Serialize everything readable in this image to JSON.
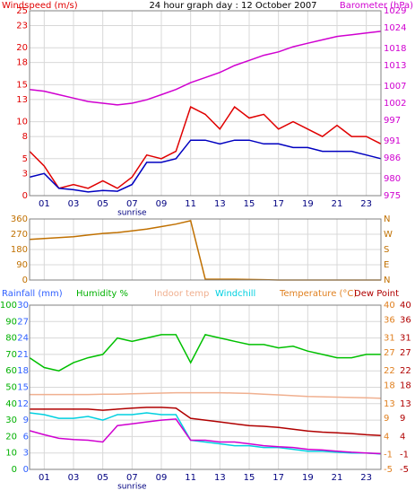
{
  "chart_data": [
    {
      "type": "line",
      "title": "24 hour graph day : 12 October 2007",
      "sunrise_label": "sunrise",
      "x": [
        0,
        1,
        2,
        3,
        4,
        5,
        6,
        7,
        8,
        9,
        10,
        11,
        12,
        13,
        14,
        15,
        16,
        17,
        18,
        19,
        20,
        21,
        22,
        23,
        24
      ],
      "xlim": [
        0,
        24
      ],
      "xticks": [
        {
          "value": 1,
          "label": "01"
        },
        {
          "value": 3,
          "label": "03"
        },
        {
          "value": 5,
          "label": "05"
        },
        {
          "value": 7,
          "label": "07"
        },
        {
          "value": 9,
          "label": "09"
        },
        {
          "value": 11,
          "label": "11"
        },
        {
          "value": 13,
          "label": "13"
        },
        {
          "value": 15,
          "label": "15"
        },
        {
          "value": 17,
          "label": "17"
        },
        {
          "value": 19,
          "label": "19"
        },
        {
          "value": 21,
          "label": "21"
        },
        {
          "value": 23,
          "label": "23"
        }
      ],
      "axes": [
        {
          "label": "Windspeed (m/s)",
          "side": "left",
          "color": "#e00000",
          "lim": [
            0,
            25
          ],
          "ticks": [
            0,
            3,
            5,
            8,
            10,
            13,
            15,
            18,
            20,
            23,
            25
          ]
        },
        {
          "label": "Barometer (hPa)",
          "side": "right",
          "color": "#d000d0",
          "lim": [
            975,
            1029
          ],
          "ticks": [
            975,
            980,
            986,
            991,
            997,
            1002,
            1007,
            1013,
            1018,
            1024,
            1029
          ]
        }
      ],
      "series": [
        {
          "color": "#e00000",
          "axis": 0,
          "values": [
            6,
            4,
            1,
            1.5,
            1,
            2,
            1,
            2.5,
            5.5,
            5,
            6,
            12,
            11,
            9,
            12,
            10.5,
            11,
            9,
            10,
            9,
            8,
            9.5,
            8,
            8,
            7
          ]
        },
        {
          "color": "#0000c0",
          "axis": 0,
          "values": [
            2.5,
            3,
            1,
            0.8,
            0.5,
            0.7,
            0.6,
            1.5,
            4.5,
            4.5,
            5,
            7.5,
            7.5,
            7,
            7.5,
            7.5,
            7,
            7,
            6.5,
            6.5,
            6,
            6,
            6,
            5.5,
            5
          ]
        },
        {
          "color": "#d000d0",
          "axis": 1,
          "values": [
            1006,
            1005.5,
            1004.5,
            1003.5,
            1002.5,
            1002,
            1001.5,
            1002,
            1003,
            1004.5,
            1006,
            1008,
            1009.5,
            1011,
            1013,
            1014.5,
            1016,
            1017,
            1018.5,
            1019.5,
            1020.5,
            1021.5,
            1022,
            1022.5,
            1023
          ]
        }
      ]
    },
    {
      "type": "line",
      "x": [
        0,
        1,
        2,
        3,
        4,
        5,
        6,
        7,
        8,
        9,
        10,
        11,
        12,
        13,
        14,
        15,
        16,
        17,
        18,
        19,
        20,
        21,
        22,
        23,
        24
      ],
      "xlim": [
        0,
        24
      ],
      "xticks": [
        {
          "value": 1,
          "label": "01"
        },
        {
          "value": 3,
          "label": "03"
        },
        {
          "value": 5,
          "label": "05"
        },
        {
          "value": 7,
          "label": "07"
        },
        {
          "value": 9,
          "label": "09"
        },
        {
          "value": 11,
          "label": "11"
        },
        {
          "value": 13,
          "label": "13"
        },
        {
          "value": 15,
          "label": "15"
        },
        {
          "value": 17,
          "label": "17"
        },
        {
          "value": 19,
          "label": "19"
        },
        {
          "value": 21,
          "label": "21"
        },
        {
          "value": 23,
          "label": "23"
        }
      ],
      "axes": [
        {
          "side": "left",
          "color": "#c07000",
          "lim": [
            0,
            360
          ],
          "ticks": [
            0,
            90,
            180,
            270,
            360
          ]
        },
        {
          "side": "right",
          "color": "#c07000",
          "lim": [
            0,
            360
          ],
          "ticks": [
            {
              "value": 0,
              "label": "N"
            },
            {
              "value": 90,
              "label": "E"
            },
            {
              "value": 180,
              "label": "S"
            },
            {
              "value": 270,
              "label": "W"
            },
            {
              "value": 360,
              "label": "N"
            }
          ]
        }
      ],
      "series": [
        {
          "color": "#c07000",
          "axis": 0,
          "values": [
            240,
            245,
            250,
            255,
            265,
            275,
            280,
            290,
            300,
            315,
            330,
            350,
            5,
            5,
            5,
            3,
            2,
            0,
            0,
            0,
            0,
            0,
            0,
            0,
            0
          ]
        }
      ]
    },
    {
      "type": "line",
      "sunrise_label": "sunrise",
      "x": [
        0,
        1,
        2,
        3,
        4,
        5,
        6,
        7,
        8,
        9,
        10,
        11,
        12,
        13,
        14,
        15,
        16,
        17,
        18,
        19,
        20,
        21,
        22,
        23,
        24
      ],
      "xlim": [
        0,
        24
      ],
      "xticks": [
        {
          "value": 1,
          "label": "01"
        },
        {
          "value": 3,
          "label": "03"
        },
        {
          "value": 5,
          "label": "05"
        },
        {
          "value": 7,
          "label": "07"
        },
        {
          "value": 9,
          "label": "09"
        },
        {
          "value": 11,
          "label": "11"
        },
        {
          "value": 13,
          "label": "13"
        },
        {
          "value": 15,
          "label": "15"
        },
        {
          "value": 17,
          "label": "17"
        },
        {
          "value": 19,
          "label": "19"
        },
        {
          "value": 21,
          "label": "21"
        },
        {
          "value": 23,
          "label": "23"
        }
      ],
      "axes": [
        {
          "label": "Humidity %",
          "side": "left",
          "color": "#00b000",
          "lim": [
            0,
            100
          ],
          "ticks": [
            0,
            10,
            20,
            30,
            40,
            50,
            60,
            70,
            80,
            90,
            100
          ]
        },
        {
          "label": "Rainfall (mm)",
          "side": "left",
          "color": "#3060ff",
          "lim": [
            0,
            30
          ],
          "ticks": [
            0,
            3,
            6,
            9,
            12,
            15,
            18,
            21,
            24,
            27,
            30
          ]
        },
        {
          "label": "Temperature (°C)",
          "side": "right",
          "color": "#e08020",
          "lim": [
            -5,
            40
          ],
          "ticks": [
            -5,
            -1,
            4,
            9,
            13,
            18,
            22,
            27,
            31,
            36,
            40
          ]
        },
        {
          "label": "Dew Point",
          "side": "right",
          "color": "#b00000",
          "lim": [
            -5,
            40
          ],
          "ticks": [
            -5,
            -1,
            4,
            9,
            13,
            18,
            22,
            27,
            31,
            36,
            40
          ]
        }
      ],
      "series": [
        {
          "color": "#00c000",
          "axis": 0,
          "values": [
            68,
            62,
            60,
            65,
            68,
            70,
            80,
            78,
            80,
            82,
            82,
            65,
            82,
            80,
            78,
            76,
            76,
            74,
            75,
            72,
            70,
            68,
            68,
            70,
            70
          ]
        },
        {
          "name": "Indoor temp",
          "color": "#f0b090",
          "axis": 2,
          "values": [
            15.5,
            15.5,
            15.5,
            15.5,
            15.5,
            15.6,
            15.6,
            15.7,
            15.8,
            15.9,
            16,
            16,
            16,
            16,
            15.9,
            15.8,
            15.6,
            15.4,
            15.2,
            15,
            14.9,
            14.8,
            14.7,
            14.6,
            14.5
          ]
        },
        {
          "color": "#b00000",
          "axis": 2,
          "values": [
            11.5,
            11.5,
            11.5,
            11.5,
            11.5,
            11.2,
            11.5,
            11.8,
            12,
            12,
            11.8,
            9,
            8.5,
            8,
            7.5,
            7,
            6.8,
            6.5,
            6,
            5.5,
            5.2,
            5,
            4.8,
            4.5,
            4.3
          ]
        },
        {
          "name": "Windchill",
          "color": "#00d0e0",
          "axis": 2,
          "values": [
            10.5,
            10,
            9,
            9,
            9.5,
            8.5,
            10,
            10,
            10.5,
            10,
            10,
            3,
            2.5,
            2,
            1.5,
            1.5,
            1,
            1,
            0.5,
            0,
            0,
            -0.3,
            -0.5,
            -0.5,
            -0.8
          ]
        },
        {
          "color": "#d000d0",
          "axis": 3,
          "values": [
            5.6,
            4.5,
            3.5,
            3.2,
            3,
            2.5,
            7,
            7.5,
            8,
            8.5,
            8.8,
            3,
            3,
            2.5,
            2.5,
            2,
            1.5,
            1.2,
            1,
            0.5,
            0.3,
            0,
            -0.3,
            -0.5,
            -0.7
          ]
        }
      ]
    }
  ]
}
